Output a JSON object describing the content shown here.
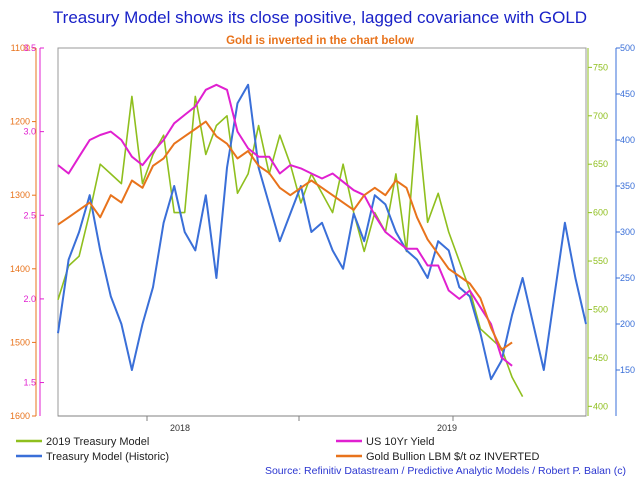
{
  "chart_data": {
    "type": "line",
    "title": "Treasury Model shows its close positive, lagged covariance with GOLD",
    "subtitle": "Gold is inverted in the chart below",
    "source": "Source: Refinitiv Datastream / Predictive Analytic Models / Robert P. Balan (c)",
    "x_ticks": [
      "2018",
      "2019"
    ],
    "axes": {
      "gold_inverted": {
        "range": [
          1100,
          1600
        ],
        "ticks": [
          "1100",
          "1200",
          "1300",
          "1400",
          "1500",
          "1600"
        ],
        "color": "#e8731c"
      },
      "yield": {
        "range": [
          1.3,
          3.5
        ],
        "ticks": [
          "3.5",
          "3.0",
          "2.5",
          "2.0",
          "1.5"
        ],
        "color": "#e020d0"
      },
      "model_2019": {
        "range": [
          390,
          770
        ],
        "ticks": [
          "750",
          "700",
          "650",
          "600",
          "550",
          "500",
          "450",
          "400"
        ],
        "color": "#8fbf1e"
      },
      "model_historic": {
        "range": [
          100,
          500
        ],
        "ticks": [
          "500",
          "450",
          "400",
          "350",
          "300",
          "250",
          "200",
          "150"
        ],
        "color": "#3a6fd8"
      }
    },
    "series": [
      {
        "name": "2019 Treasury Model",
        "axis": "model_2019",
        "color": "#8fbf1e",
        "t": [
          0,
          0.02,
          0.04,
          0.06,
          0.08,
          0.1,
          0.12,
          0.14,
          0.16,
          0.18,
          0.2,
          0.22,
          0.24,
          0.26,
          0.28,
          0.3,
          0.32,
          0.34,
          0.36,
          0.38,
          0.4,
          0.42,
          0.44,
          0.46,
          0.48,
          0.5,
          0.52,
          0.54,
          0.56,
          0.58,
          0.6,
          0.62,
          0.64,
          0.66,
          0.68,
          0.7,
          0.72,
          0.74,
          0.76,
          0.78,
          0.8,
          0.82,
          0.84,
          0.86,
          0.88
        ],
        "v": [
          510,
          545,
          555,
          600,
          650,
          640,
          630,
          720,
          630,
          660,
          680,
          600,
          600,
          720,
          660,
          690,
          700,
          620,
          640,
          690,
          640,
          680,
          650,
          610,
          640,
          620,
          600,
          650,
          600,
          560,
          600,
          580,
          640,
          560,
          700,
          590,
          620,
          580,
          550,
          520,
          480,
          470,
          460,
          430,
          410
        ]
      },
      {
        "name": "Treasury Model (Historic)",
        "axis": "model_historic",
        "color": "#3a6fd8",
        "t": [
          0,
          0.02,
          0.04,
          0.06,
          0.08,
          0.1,
          0.12,
          0.14,
          0.16,
          0.18,
          0.2,
          0.22,
          0.24,
          0.26,
          0.28,
          0.3,
          0.32,
          0.34,
          0.36,
          0.38,
          0.4,
          0.42,
          0.44,
          0.46,
          0.48,
          0.5,
          0.52,
          0.54,
          0.56,
          0.58,
          0.6,
          0.62,
          0.64,
          0.66,
          0.68,
          0.7,
          0.72,
          0.74,
          0.76,
          0.78,
          0.8,
          0.82,
          0.84,
          0.86,
          0.88,
          0.9,
          0.92,
          0.94,
          0.96,
          0.98,
          1.0
        ],
        "v": [
          190,
          270,
          300,
          340,
          280,
          230,
          200,
          150,
          200,
          240,
          310,
          350,
          300,
          280,
          340,
          250,
          370,
          440,
          460,
          370,
          330,
          290,
          320,
          350,
          300,
          310,
          280,
          260,
          320,
          290,
          340,
          330,
          300,
          280,
          270,
          250,
          290,
          280,
          240,
          230,
          190,
          140,
          160,
          210,
          250,
          200,
          150,
          230,
          310,
          250,
          200
        ]
      },
      {
        "name": "US 10Yr Yield",
        "axis": "yield",
        "color": "#e020d0",
        "t": [
          0,
          0.02,
          0.04,
          0.06,
          0.08,
          0.1,
          0.12,
          0.14,
          0.16,
          0.18,
          0.2,
          0.22,
          0.24,
          0.26,
          0.28,
          0.3,
          0.32,
          0.34,
          0.36,
          0.38,
          0.4,
          0.42,
          0.44,
          0.46,
          0.48,
          0.5,
          0.52,
          0.54,
          0.56,
          0.58,
          0.6,
          0.62,
          0.64,
          0.66,
          0.68,
          0.7,
          0.72,
          0.74,
          0.76,
          0.78,
          0.8,
          0.82,
          0.84,
          0.86
        ],
        "v": [
          2.8,
          2.75,
          2.85,
          2.95,
          2.98,
          3.0,
          2.95,
          2.85,
          2.8,
          2.88,
          2.95,
          3.05,
          3.1,
          3.15,
          3.25,
          3.28,
          3.25,
          3.0,
          2.9,
          2.85,
          2.85,
          2.75,
          2.8,
          2.78,
          2.75,
          2.72,
          2.75,
          2.7,
          2.65,
          2.62,
          2.5,
          2.4,
          2.35,
          2.3,
          2.3,
          2.2,
          2.2,
          2.05,
          2.0,
          2.05,
          1.95,
          1.85,
          1.65,
          1.6
        ]
      },
      {
        "name": "Gold Bullion LBM $/t oz INVERTED",
        "axis": "gold_inverted",
        "color": "#e8731c",
        "t": [
          0,
          0.02,
          0.04,
          0.06,
          0.08,
          0.1,
          0.12,
          0.14,
          0.16,
          0.18,
          0.2,
          0.22,
          0.24,
          0.26,
          0.28,
          0.3,
          0.32,
          0.34,
          0.36,
          0.38,
          0.4,
          0.42,
          0.44,
          0.46,
          0.48,
          0.5,
          0.52,
          0.54,
          0.56,
          0.58,
          0.6,
          0.62,
          0.64,
          0.66,
          0.68,
          0.7,
          0.72,
          0.74,
          0.76,
          0.78,
          0.8,
          0.82,
          0.84,
          0.86
        ],
        "v": [
          1340,
          1330,
          1320,
          1310,
          1330,
          1300,
          1310,
          1280,
          1290,
          1260,
          1250,
          1230,
          1220,
          1210,
          1200,
          1220,
          1230,
          1250,
          1240,
          1260,
          1270,
          1290,
          1300,
          1290,
          1280,
          1290,
          1300,
          1310,
          1320,
          1300,
          1290,
          1300,
          1280,
          1290,
          1330,
          1360,
          1380,
          1400,
          1410,
          1420,
          1440,
          1480,
          1510,
          1500
        ]
      }
    ]
  },
  "legend": [
    {
      "label": "2019 Treasury Model",
      "color": "#8fbf1e"
    },
    {
      "label": "US 10Yr Yield",
      "color": "#e020d0"
    },
    {
      "label": "Treasury Model (Historic)",
      "color": "#3a6fd8"
    },
    {
      "label": "Gold Bullion LBM $/t oz INVERTED",
      "color": "#e8731c"
    }
  ]
}
